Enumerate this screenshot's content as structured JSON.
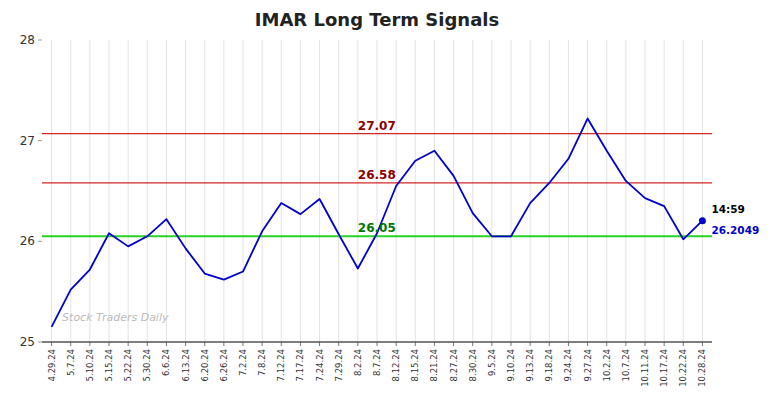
{
  "chart_data": {
    "type": "line",
    "title": "IMAR Long Term Signals",
    "categories": [
      "4.29.24",
      "5.7.24",
      "5.10.24",
      "5.15.24",
      "5.22.24",
      "5.30.24",
      "6.6.24",
      "6.13.24",
      "6.20.24",
      "6.26.24",
      "7.2.24",
      "7.8.24",
      "7.12.24",
      "7.17.24",
      "7.24.24",
      "7.29.24",
      "8.2.24",
      "8.7.24",
      "8.12.24",
      "8.15.24",
      "8.21.24",
      "8.27.24",
      "8.30.24",
      "9.5.24",
      "9.10.24",
      "9.13.24",
      "9.18.24",
      "9.24.24",
      "9.27.24",
      "10.2.24",
      "10.7.24",
      "10.11.24",
      "10.17.24",
      "10.22.24",
      "10.28.24"
    ],
    "values": [
      25.15,
      25.52,
      25.72,
      26.08,
      25.95,
      26.05,
      26.22,
      25.93,
      25.68,
      25.62,
      25.7,
      26.1,
      26.38,
      26.27,
      26.42,
      26.07,
      25.73,
      26.08,
      26.55,
      26.8,
      26.9,
      26.65,
      26.28,
      26.05,
      26.05,
      26.38,
      26.58,
      26.82,
      27.22,
      26.9,
      26.6,
      26.43,
      26.35,
      26.02,
      26.2049
    ],
    "color": "#0000cc",
    "ylim": [
      25.0,
      28.0
    ],
    "yticks": [
      25,
      26,
      27,
      28
    ],
    "grid": "x",
    "hlines": [
      {
        "value": 27.07,
        "label": "27.07",
        "color": "#cc0000",
        "label_color": "#880000"
      },
      {
        "value": 26.58,
        "label": "26.58",
        "color": "#cc0000",
        "label_color": "#880000"
      },
      {
        "value": 26.05,
        "label": "26.05",
        "color": "#00cc00",
        "label_color": "#007700"
      }
    ],
    "annotations": [
      {
        "text": "14:59",
        "color": "#000000"
      },
      {
        "text": "26.2049",
        "color": "#0000cc"
      }
    ],
    "watermark": "Stock Traders Daily"
  }
}
